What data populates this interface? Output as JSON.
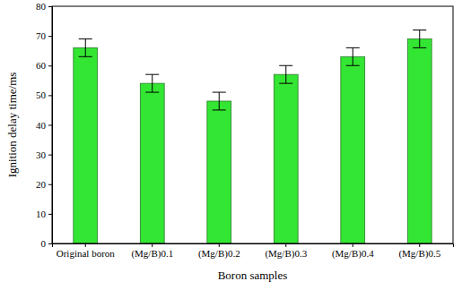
{
  "chart_data": {
    "type": "bar",
    "x_label": "Boron samples",
    "y_label": "Ignition delay time/ms",
    "categories": [
      "Original boron",
      "(Mg/B)0.1",
      "(Mg/B)0.2",
      "(Mg/B)0.3",
      "(Mg/B)0.4",
      "(Mg/B)0.5"
    ],
    "values": [
      66,
      54,
      48,
      57,
      63,
      69
    ],
    "errors": [
      3,
      3,
      3,
      3,
      3,
      3
    ],
    "color": "#33e633",
    "ylim": [
      0,
      80
    ],
    "yticks": [
      0,
      10,
      20,
      30,
      40,
      50,
      60,
      70,
      80
    ],
    "grid": false
  }
}
